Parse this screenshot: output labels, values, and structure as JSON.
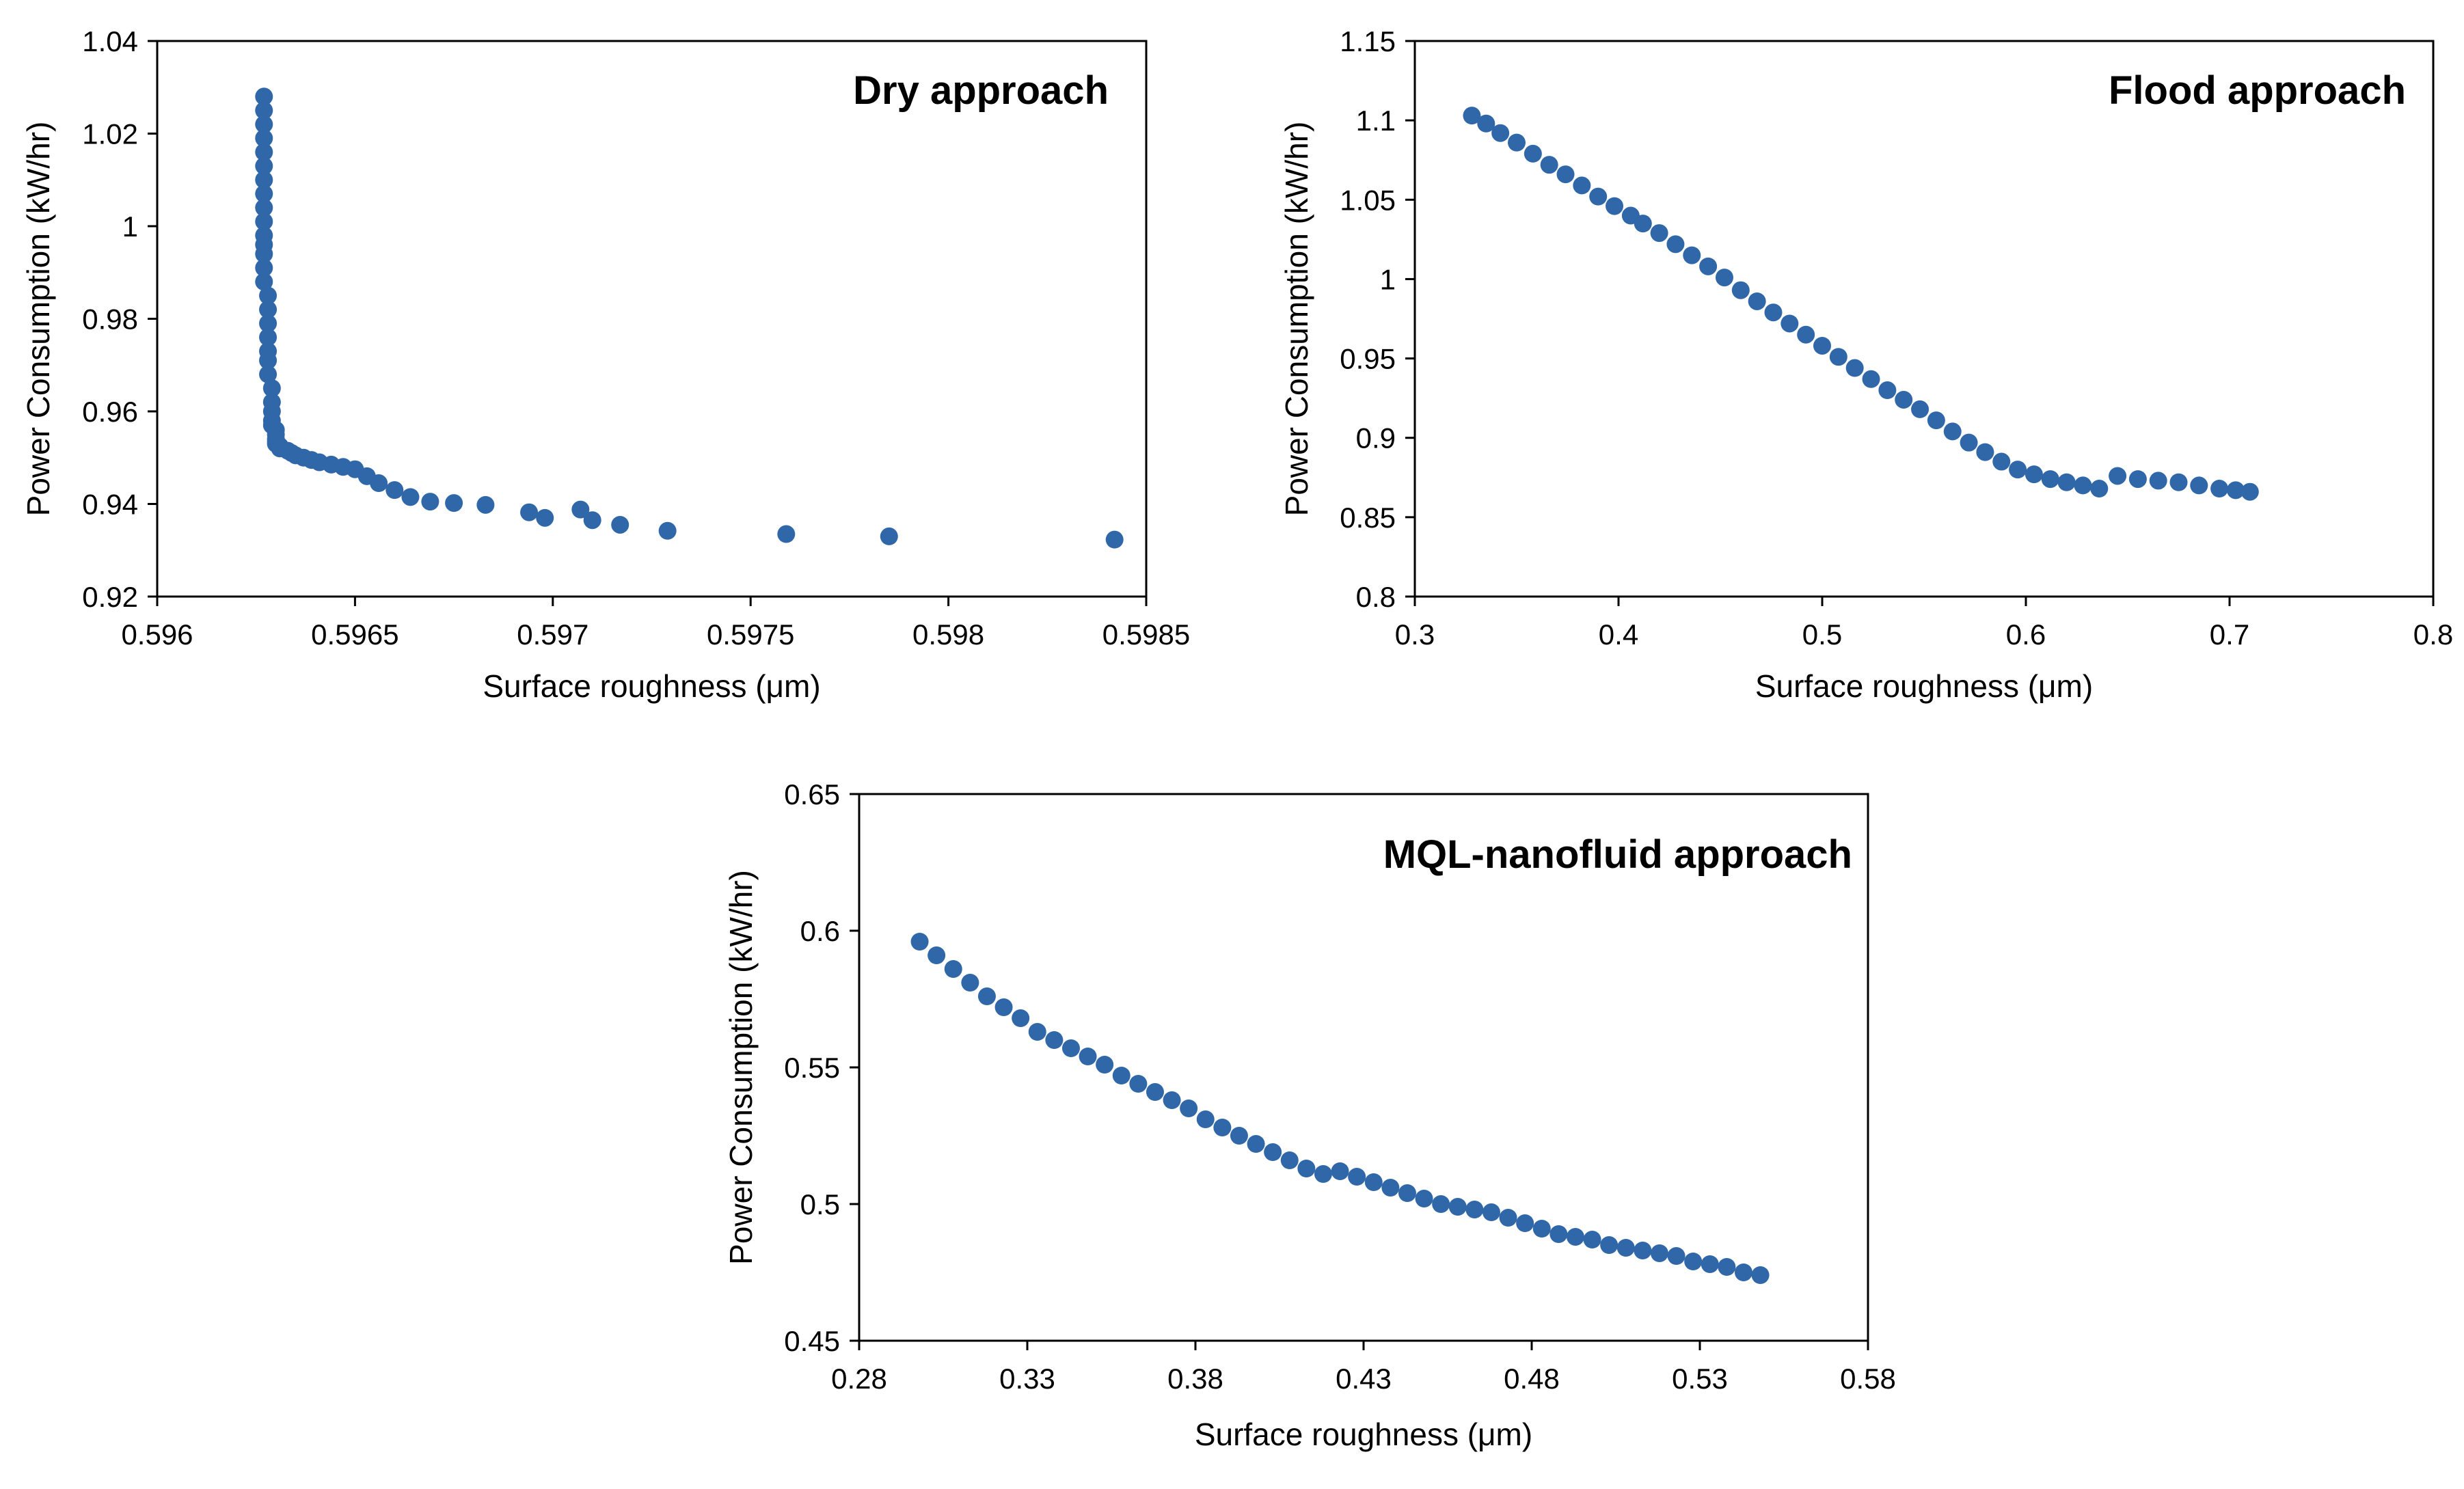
{
  "chart_data": [
    {
      "type": "scatter",
      "title": "Dry approach",
      "xlabel": "Surface roughness (μm)",
      "ylabel": "Power Consumption  (kW/hr)",
      "xlim": [
        0.596,
        0.5985
      ],
      "ylim": [
        0.92,
        1.04
      ],
      "xticks": [
        0.596,
        0.5965,
        0.597,
        0.5975,
        0.598,
        0.5985
      ],
      "yticks": [
        0.92,
        0.94,
        0.96,
        0.98,
        1,
        1.02,
        1.04
      ],
      "xtick_labels": [
        "0.596",
        "0.5965",
        "0.597",
        "0.5975",
        "0.598",
        "0.5985"
      ],
      "ytick_labels": [
        "0.92",
        "0.94",
        "0.96",
        "0.98",
        "1",
        "1.02",
        "1.04"
      ],
      "series": [
        {
          "name": "Dry approach",
          "x": [
            0.59627,
            0.59627,
            0.59627,
            0.59627,
            0.59627,
            0.59627,
            0.59627,
            0.59627,
            0.59627,
            0.59627,
            0.59627,
            0.59627,
            0.59627,
            0.59627,
            0.59627,
            0.59628,
            0.59628,
            0.59628,
            0.59628,
            0.59628,
            0.59628,
            0.59628,
            0.59629,
            0.59629,
            0.59629,
            0.59629,
            0.59629,
            0.5963,
            0.5963,
            0.5963,
            0.5963,
            0.5963,
            0.59631,
            0.59631,
            0.59633,
            0.59634,
            0.59635,
            0.59637,
            0.59639,
            0.59641,
            0.59644,
            0.59647,
            0.5965,
            0.59653,
            0.59656,
            0.5966,
            0.59664,
            0.59669,
            0.59675,
            0.59683,
            0.59707,
            0.59694,
            0.59698,
            0.5971,
            0.59717,
            0.59729,
            0.59759,
            0.59785,
            0.59842
          ],
          "y": [
            1.028,
            1.025,
            1.022,
            1.019,
            1.016,
            1.013,
            1.01,
            1.007,
            1.004,
            1.001,
            0.998,
            0.996,
            0.994,
            0.991,
            0.988,
            0.985,
            0.982,
            0.979,
            0.976,
            0.973,
            0.971,
            0.968,
            0.965,
            0.962,
            0.96,
            0.958,
            0.957,
            0.956,
            0.955,
            0.954,
            0.9535,
            0.953,
            0.9525,
            0.952,
            0.9515,
            0.951,
            0.9505,
            0.95,
            0.9495,
            0.949,
            0.9485,
            0.948,
            0.9475,
            0.946,
            0.9445,
            0.943,
            0.9415,
            0.9405,
            0.9402,
            0.9398,
            0.9388,
            0.9382,
            0.937,
            0.9365,
            0.9355,
            0.9342,
            0.9335,
            0.933,
            0.9323
          ]
        }
      ]
    },
    {
      "type": "scatter",
      "title": "Flood approach",
      "xlabel": "Surface roughness (μm)",
      "ylabel": "Power Consumption  (kW/hr)",
      "xlim": [
        0.3,
        0.8
      ],
      "ylim": [
        0.8,
        1.15
      ],
      "xticks": [
        0.3,
        0.4,
        0.5,
        0.6,
        0.7,
        0.8
      ],
      "yticks": [
        0.8,
        0.85,
        0.9,
        0.95,
        1,
        1.05,
        1.1,
        1.15
      ],
      "xtick_labels": [
        "0.3",
        "0.4",
        "0.5",
        "0.6",
        "0.7",
        "0.8"
      ],
      "ytick_labels": [
        "0.8",
        "0.85",
        "0.9",
        "0.95",
        "1",
        "1.05",
        "1.1",
        "1.15"
      ],
      "series": [
        {
          "name": "Flood approach",
          "x": [
            0.328,
            0.335,
            0.342,
            0.35,
            0.358,
            0.366,
            0.374,
            0.382,
            0.39,
            0.398,
            0.406,
            0.412,
            0.42,
            0.428,
            0.436,
            0.444,
            0.452,
            0.46,
            0.468,
            0.476,
            0.484,
            0.492,
            0.5,
            0.508,
            0.516,
            0.524,
            0.532,
            0.54,
            0.548,
            0.556,
            0.564,
            0.572,
            0.58,
            0.588,
            0.596,
            0.604,
            0.612,
            0.62,
            0.628,
            0.636,
            0.645,
            0.655,
            0.665,
            0.675,
            0.685,
            0.695,
            0.703,
            0.71
          ],
          "y": [
            1.103,
            1.098,
            1.092,
            1.086,
            1.079,
            1.072,
            1.066,
            1.059,
            1.052,
            1.046,
            1.04,
            1.035,
            1.029,
            1.022,
            1.015,
            1.008,
            1.001,
            0.993,
            0.986,
            0.979,
            0.972,
            0.965,
            0.958,
            0.951,
            0.944,
            0.937,
            0.93,
            0.924,
            0.918,
            0.911,
            0.904,
            0.897,
            0.891,
            0.885,
            0.88,
            0.877,
            0.874,
            0.872,
            0.87,
            0.868,
            0.876,
            0.874,
            0.873,
            0.872,
            0.87,
            0.868,
            0.867,
            0.866
          ]
        }
      ]
    },
    {
      "type": "scatter",
      "title": "MQL-nanofluid approach",
      "xlabel": "Surface roughness (μm)",
      "ylabel": "Power Consumption  (kW/hr)",
      "xlim": [
        0.28,
        0.58
      ],
      "ylim": [
        0.45,
        0.65
      ],
      "xticks": [
        0.28,
        0.33,
        0.38,
        0.43,
        0.48,
        0.53,
        0.58
      ],
      "yticks": [
        0.45,
        0.5,
        0.55,
        0.6,
        0.65
      ],
      "xtick_labels": [
        "0.28",
        "0.33",
        "0.38",
        "0.43",
        "0.48",
        "0.53",
        "0.58"
      ],
      "ytick_labels": [
        "0.45",
        "0.5",
        "0.55",
        "0.6",
        "0.65"
      ],
      "series": [
        {
          "name": "MQL-nanofluid approach",
          "x": [
            0.298,
            0.303,
            0.308,
            0.313,
            0.318,
            0.323,
            0.328,
            0.333,
            0.338,
            0.343,
            0.348,
            0.353,
            0.358,
            0.363,
            0.368,
            0.373,
            0.378,
            0.383,
            0.388,
            0.393,
            0.398,
            0.403,
            0.408,
            0.413,
            0.418,
            0.423,
            0.428,
            0.433,
            0.438,
            0.443,
            0.448,
            0.453,
            0.458,
            0.463,
            0.468,
            0.473,
            0.478,
            0.483,
            0.488,
            0.493,
            0.498,
            0.503,
            0.508,
            0.513,
            0.518,
            0.523,
            0.528,
            0.533,
            0.538,
            0.543,
            0.548
          ],
          "y": [
            0.596,
            0.591,
            0.586,
            0.581,
            0.576,
            0.572,
            0.568,
            0.563,
            0.56,
            0.557,
            0.554,
            0.551,
            0.547,
            0.544,
            0.541,
            0.538,
            0.535,
            0.531,
            0.528,
            0.525,
            0.522,
            0.519,
            0.516,
            0.513,
            0.511,
            0.512,
            0.51,
            0.508,
            0.506,
            0.504,
            0.502,
            0.5,
            0.499,
            0.498,
            0.497,
            0.495,
            0.493,
            0.491,
            0.489,
            0.488,
            0.487,
            0.485,
            0.484,
            0.483,
            0.482,
            0.481,
            0.479,
            0.478,
            0.477,
            0.475,
            0.474
          ]
        }
      ]
    }
  ]
}
